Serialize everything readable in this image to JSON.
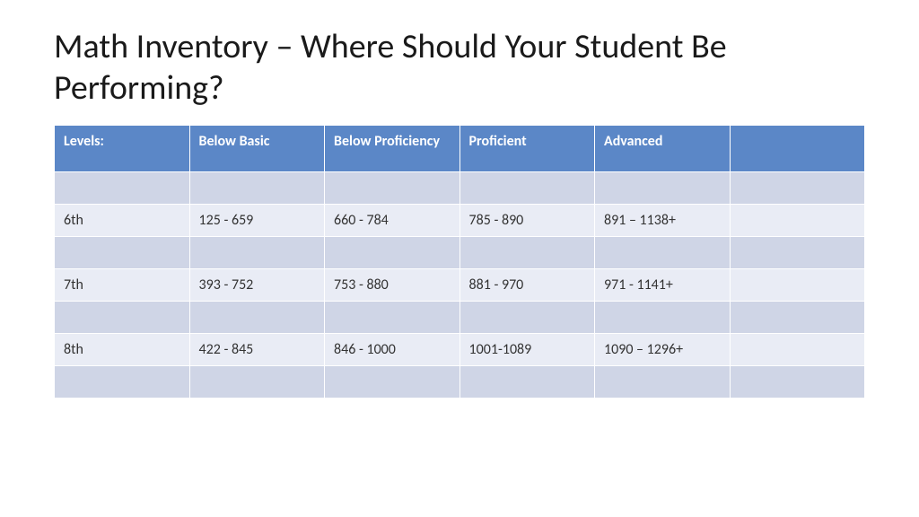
{
  "title": "Math Inventory – Where Should Your Student Be Performing?",
  "table": {
    "header_bg": "#5b87c7",
    "header_fg": "#ffffff",
    "row_band_a": "#cfd5e6",
    "row_band_b": "#e9ecf5",
    "cell_text_color": "#333333",
    "header_fontsize": 16,
    "cell_fontsize": 16,
    "columns": [
      "Levels:",
      "Below Basic",
      "Below Proficiency",
      "Proficient",
      "Advanced",
      ""
    ],
    "rows": [
      [
        "",
        "",
        "",
        "",
        "",
        ""
      ],
      [
        "6th",
        "125 - 659",
        "660 - 784",
        "785 - 890",
        "891 – 1138+",
        ""
      ],
      [
        "",
        "",
        "",
        "",
        "",
        ""
      ],
      [
        "7th",
        "393 - 752",
        "753 - 880",
        "881 - 970",
        "971 - 1141+",
        ""
      ],
      [
        "",
        "",
        "",
        "",
        "",
        ""
      ],
      [
        "8th",
        "422 - 845",
        "846 - 1000",
        "1001-1089",
        "1090 – 1296+",
        ""
      ],
      [
        "",
        "",
        "",
        "",
        "",
        ""
      ]
    ],
    "row_bands": [
      "a",
      "b",
      "a",
      "b",
      "a",
      "b",
      "a"
    ]
  }
}
